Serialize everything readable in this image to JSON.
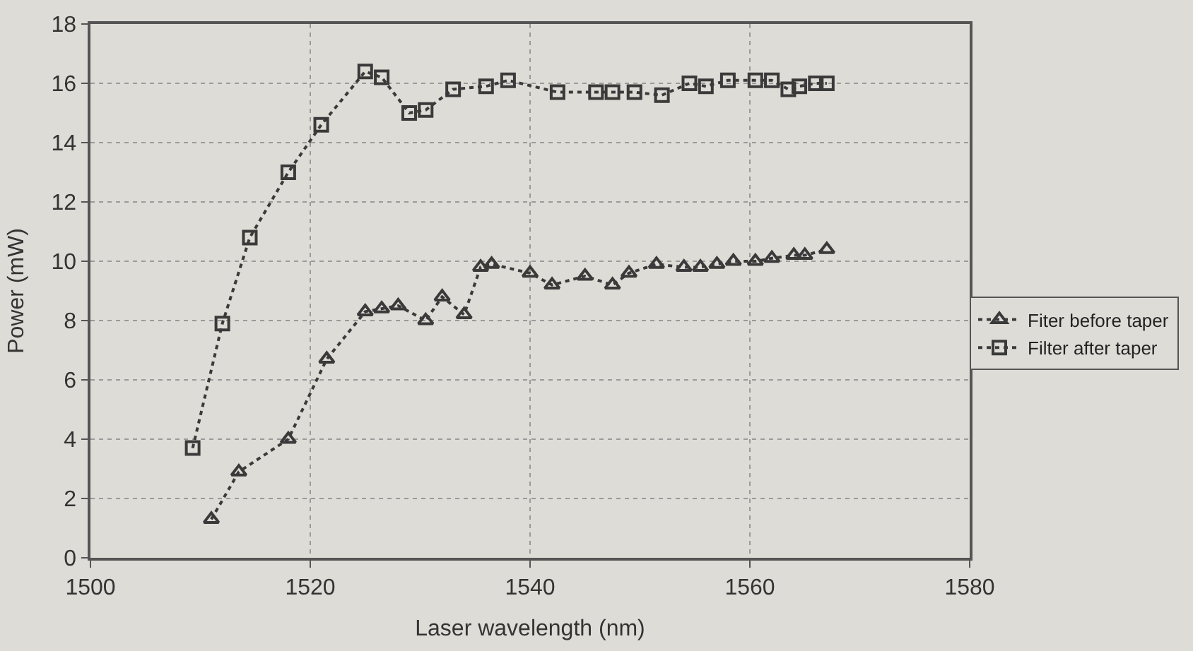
{
  "chart_data": {
    "type": "line",
    "xlabel": "Laser wavelength (nm)",
    "ylabel": "Power (mW)",
    "xlim": [
      1500,
      1580
    ],
    "xticks": [
      1500,
      1520,
      1540,
      1560,
      1580
    ],
    "ylim": [
      0,
      18
    ],
    "yticks": [
      0,
      2,
      4,
      6,
      8,
      10,
      12,
      14,
      16,
      18
    ],
    "grid": true,
    "legend": "right",
    "line_style": "dotted",
    "series": [
      {
        "name": "Fiter before taper",
        "color": "#3a3a3a",
        "marker": "triangle",
        "x": [
          1511,
          1513.5,
          1518,
          1521.5,
          1525,
          1526.5,
          1528,
          1530.5,
          1532,
          1534,
          1535.5,
          1536.5,
          1540,
          1542,
          1545,
          1547.5,
          1549,
          1551.5,
          1554,
          1555.5,
          1557,
          1558.5,
          1560.5,
          1562,
          1564,
          1565,
          1567
        ],
        "values": [
          1.3,
          2.9,
          4.0,
          6.7,
          8.3,
          8.4,
          8.5,
          8.0,
          8.8,
          8.2,
          9.8,
          9.9,
          9.6,
          9.2,
          9.5,
          9.2,
          9.6,
          9.9,
          9.8,
          9.8,
          9.9,
          10.0,
          10.0,
          10.1,
          10.2,
          10.2,
          10.4
        ]
      },
      {
        "name": "Filter after taper",
        "color": "#3a3a3a",
        "marker": "square",
        "x": [
          1509.3,
          1512,
          1514.5,
          1518,
          1521,
          1525,
          1526.5,
          1529,
          1530.5,
          1533,
          1536,
          1538,
          1542.5,
          1546,
          1547.5,
          1549.5,
          1552,
          1554.5,
          1556,
          1558,
          1560.5,
          1562,
          1563.5,
          1564.5,
          1566,
          1567
        ],
        "values": [
          3.7,
          7.9,
          10.8,
          13.0,
          14.6,
          16.4,
          16.2,
          15.0,
          15.1,
          15.8,
          15.9,
          16.1,
          15.7,
          15.7,
          15.7,
          15.7,
          15.6,
          16.0,
          15.9,
          16.1,
          16.1,
          16.1,
          15.8,
          15.9,
          16.0,
          16.0
        ]
      }
    ]
  }
}
